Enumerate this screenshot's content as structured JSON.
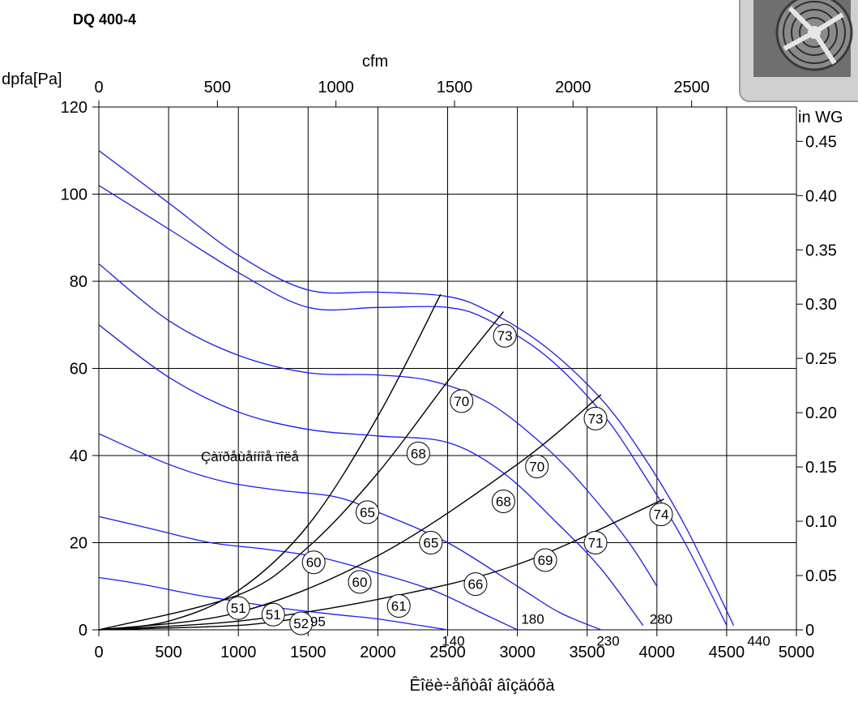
{
  "chart_data": {
    "type": "line",
    "title": "DQ 400-4",
    "xlabel": "Êîëè÷åñòâî âîçäóõà",
    "ylabel": "dpfa[Pa]",
    "x2label": "cfm",
    "y2label": "in WG",
    "xlim": [
      0,
      5000
    ],
    "ylim": [
      0,
      120
    ],
    "x2lim": [
      0,
      2942
    ],
    "y2lim": [
      0,
      0.4816
    ],
    "xticks": [
      "0",
      "500",
      "1000",
      "1500",
      "2000",
      "2500",
      "3000",
      "3500",
      "4000",
      "4500",
      "5000"
    ],
    "yticks": [
      "0",
      "20",
      "40",
      "60",
      "80",
      "100",
      "120"
    ],
    "x2ticks": [
      "0",
      "500",
      "1000",
      "1500",
      "2000",
      "2500"
    ],
    "y2ticks": [
      "0",
      "0.05",
      "0.10",
      "0.15",
      "0.20",
      "0.25",
      "0.30",
      "0.35",
      "0.40",
      "0.45"
    ],
    "grid": true,
    "working_range_label": "Çàïðåùåííîå ïîëå",
    "series": [
      {
        "color": "#1a1aff",
        "x": [
          0,
          300,
          700,
          1000,
          1300,
          1700,
          2000,
          2300,
          2500
        ],
        "y": [
          12,
          10.5,
          8,
          6.5,
          5,
          3.5,
          2.5,
          1,
          0
        ]
      },
      {
        "color": "#1a1aff",
        "x": [
          0,
          400,
          800,
          1200,
          1600,
          2000,
          2400,
          2800,
          3000
        ],
        "y": [
          26,
          23,
          20,
          18.5,
          16.5,
          13,
          9,
          3,
          0
        ]
      },
      {
        "color": "#1a1aff",
        "x": [
          0,
          500,
          900,
          1300,
          1700,
          2000,
          2500,
          3000,
          3300,
          3600
        ],
        "y": [
          45,
          38,
          34,
          32,
          30.5,
          27,
          20,
          10,
          4,
          0
        ]
      },
      {
        "color": "#1a1aff",
        "x": [
          0,
          500,
          1000,
          1500,
          2000,
          2500,
          2900,
          3300,
          3600,
          3900
        ],
        "y": [
          70,
          58,
          50,
          46,
          44.5,
          43,
          36,
          24,
          14,
          1
        ]
      },
      {
        "color": "#1a1aff",
        "x": [
          0,
          500,
          1000,
          1500,
          2000,
          2400,
          2800,
          3200,
          3500,
          3800,
          4000
        ],
        "y": [
          84,
          71,
          63,
          59,
          58.5,
          57,
          52,
          42,
          32,
          20,
          10
        ]
      },
      {
        "color": "#1a1aff",
        "x": [
          0,
          500,
          1000,
          1500,
          2000,
          2500,
          2800,
          3200,
          3600,
          3900,
          4200,
          4500
        ],
        "y": [
          102,
          92,
          82,
          74,
          74,
          74,
          71,
          63,
          50,
          36,
          20,
          1
        ]
      },
      {
        "color": "#1a1aff",
        "x": [
          0,
          500,
          1000,
          1500,
          2000,
          2500,
          2800,
          3200,
          3600,
          3900,
          4200,
          4550
        ],
        "y": [
          110,
          98,
          86,
          78,
          77.5,
          76.5,
          73,
          65,
          53,
          40,
          24,
          1
        ]
      },
      {
        "color": "#000000",
        "x": [
          0,
          500,
          1000,
          1500,
          2000,
          2450
        ],
        "y": [
          0,
          2,
          9,
          24,
          49,
          77
        ]
      },
      {
        "color": "#000000",
        "x": [
          0,
          1000,
          1500,
          2000,
          2500,
          2900
        ],
        "y": [
          0,
          8,
          19,
          36,
          57,
          73
        ]
      },
      {
        "color": "#000000",
        "x": [
          0,
          1000,
          2000,
          3000,
          3600
        ],
        "y": [
          0,
          4,
          17,
          38,
          54
        ]
      },
      {
        "color": "#000000",
        "x": [
          0,
          1000,
          2000,
          3000,
          4050
        ],
        "y": [
          0,
          2,
          7,
          15,
          30
        ]
      },
      {
        "color": "#000000",
        "x": [
          0,
          1000,
          1500
        ],
        "y": [
          0,
          1,
          3
        ]
      }
    ],
    "noise_labels": [
      {
        "x": 1000,
        "y": 5,
        "text": "51"
      },
      {
        "x": 1250,
        "y": 3.5,
        "text": "51"
      },
      {
        "x": 1450,
        "y": 1.5,
        "text": "52"
      },
      {
        "x": 1540,
        "y": 15.5,
        "text": "60"
      },
      {
        "x": 1870,
        "y": 11,
        "text": "60"
      },
      {
        "x": 2150,
        "y": 5.5,
        "text": "61"
      },
      {
        "x": 1925,
        "y": 27,
        "text": "65"
      },
      {
        "x": 2380,
        "y": 20,
        "text": "65"
      },
      {
        "x": 2700,
        "y": 10.5,
        "text": "66"
      },
      {
        "x": 2290,
        "y": 40.5,
        "text": "68"
      },
      {
        "x": 2900,
        "y": 29.5,
        "text": "68"
      },
      {
        "x": 3200,
        "y": 16,
        "text": "69"
      },
      {
        "x": 2600,
        "y": 52.5,
        "text": "70"
      },
      {
        "x": 3140,
        "y": 37.5,
        "text": "70"
      },
      {
        "x": 2910,
        "y": 67.5,
        "text": "73"
      },
      {
        "x": 3560,
        "y": 48.5,
        "text": "73"
      },
      {
        "x": 3560,
        "y": 20,
        "text": "71"
      },
      {
        "x": 4030,
        "y": 26.5,
        "text": "74"
      }
    ],
    "plain_labels": [
      {
        "x": 1570,
        "y": 2,
        "text": "95"
      },
      {
        "x": 2540,
        "y": -2.5,
        "text": "140"
      },
      {
        "x": 3110,
        "y": 2.5,
        "text": "180"
      },
      {
        "x": 3650,
        "y": -2.5,
        "text": "230"
      },
      {
        "x": 4030,
        "y": 2.5,
        "text": "280"
      },
      {
        "x": 4730,
        "y": -2.5,
        "text": "440"
      }
    ]
  }
}
